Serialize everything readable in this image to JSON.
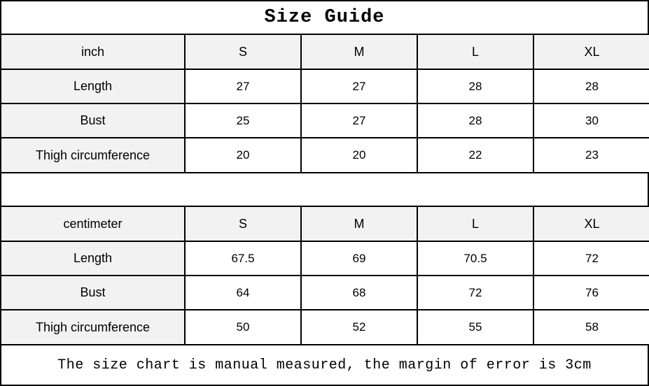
{
  "title": "Size Guide",
  "footer_note": "The size chart is manual measured, the margin of error is 3cm",
  "colors": {
    "header_cell_bg": "#f2f2f2",
    "border": "#000000",
    "background": "#ffffff",
    "text": "#000000"
  },
  "tables": [
    {
      "unit": "inch",
      "columns": [
        "S",
        "M",
        "L",
        "XL"
      ],
      "rows": [
        {
          "label": "Length",
          "values": [
            "27",
            "27",
            "28",
            "28"
          ]
        },
        {
          "label": "Bust",
          "values": [
            "25",
            "27",
            "28",
            "30"
          ]
        },
        {
          "label": "Thigh circumference",
          "values": [
            "20",
            "20",
            "22",
            "23"
          ]
        }
      ]
    },
    {
      "unit": "centimeter",
      "columns": [
        "S",
        "M",
        "L",
        "XL"
      ],
      "rows": [
        {
          "label": "Length",
          "values": [
            "67.5",
            "69",
            "70.5",
            "72"
          ]
        },
        {
          "label": "Bust",
          "values": [
            "64",
            "68",
            "72",
            "76"
          ]
        },
        {
          "label": "Thigh circumference",
          "values": [
            "50",
            "52",
            "55",
            "58"
          ]
        }
      ]
    }
  ]
}
